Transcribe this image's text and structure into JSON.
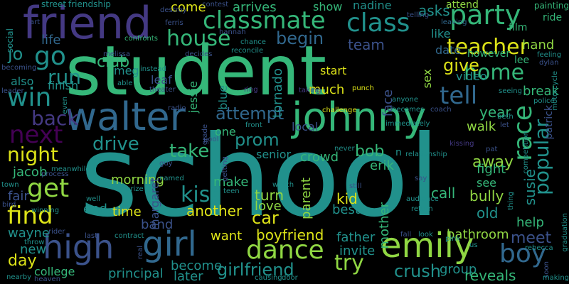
{
  "palette": {
    "teal": "#21918c",
    "green": "#35b779",
    "lime": "#90d743",
    "yellow": "#dde318",
    "blue": "#31688e",
    "indigo": "#3b528b",
    "purple": "#443983",
    "violet": "#440154"
  },
  "words": [
    {
      "id": "school",
      "text": "school",
      "color": "teal"
    },
    {
      "id": "student",
      "text": "student",
      "color": "green"
    },
    {
      "id": "friend",
      "text": "friend",
      "color": "purple"
    },
    {
      "id": "johnny",
      "text": "johnny",
      "color": "green"
    },
    {
      "id": "walter",
      "text": "walter",
      "color": "blue"
    },
    {
      "id": "high",
      "text": "high",
      "color": "indigo"
    },
    {
      "id": "girl",
      "text": "girl",
      "color": "blue"
    },
    {
      "id": "emily",
      "text": "emily",
      "color": "lime"
    },
    {
      "id": "classmate",
      "text": "classmate",
      "color": "green"
    },
    {
      "id": "party",
      "text": "party",
      "color": "green"
    },
    {
      "id": "class",
      "text": "class",
      "color": "teal"
    },
    {
      "id": "house",
      "text": "house",
      "color": "green"
    },
    {
      "id": "teacher",
      "text": "teacher",
      "color": "yellow"
    },
    {
      "id": "home",
      "text": "home",
      "color": "green"
    },
    {
      "id": "go",
      "text": "go",
      "color": "teal"
    },
    {
      "id": "win",
      "text": "win",
      "color": "teal"
    },
    {
      "id": "next",
      "text": "next",
      "color": "violet"
    },
    {
      "id": "night",
      "text": "night",
      "color": "yellow"
    },
    {
      "id": "get",
      "text": "get",
      "color": "lime"
    },
    {
      "id": "find",
      "text": "find",
      "color": "yellow"
    },
    {
      "id": "back",
      "text": "back",
      "color": "purple"
    },
    {
      "id": "tell",
      "text": "tell",
      "color": "blue"
    },
    {
      "id": "race",
      "text": "race",
      "color": "green"
    },
    {
      "id": "popular",
      "text": "popular",
      "color": "teal"
    },
    {
      "id": "dance",
      "text": "dance",
      "color": "lime"
    },
    {
      "id": "boy",
      "text": "boy",
      "color": "blue"
    },
    {
      "id": "girlfriend",
      "text": "girlfriend",
      "color": "teal"
    },
    {
      "id": "try",
      "text": "try",
      "color": "lime"
    },
    {
      "id": "crush",
      "text": "crush",
      "color": "teal"
    },
    {
      "id": "kiss",
      "text": "kiss",
      "color": "teal"
    },
    {
      "id": "attempt",
      "text": "attempt",
      "color": "blue"
    },
    {
      "id": "prom",
      "text": "prom",
      "color": "teal"
    },
    {
      "id": "drive",
      "text": "drive",
      "color": "teal"
    },
    {
      "id": "take",
      "text": "take",
      "color": "green"
    },
    {
      "id": "run",
      "text": "run",
      "color": "teal"
    },
    {
      "id": "give",
      "text": "give",
      "color": "yellow"
    },
    {
      "id": "begin",
      "text": "begin",
      "color": "blue"
    },
    {
      "id": "club",
      "text": "club",
      "color": "green"
    },
    {
      "id": "team",
      "text": "team",
      "color": "indigo"
    },
    {
      "id": "jo",
      "text": "jo",
      "color": "teal"
    },
    {
      "id": "meet",
      "text": "meet",
      "color": "indigo"
    },
    {
      "id": "bob",
      "text": "bob",
      "color": "green"
    },
    {
      "id": "car",
      "text": "car",
      "color": "yellow"
    },
    {
      "id": "susie",
      "text": "susie",
      "color": "teal"
    },
    {
      "id": "away",
      "text": "away",
      "color": "lime"
    },
    {
      "id": "year",
      "text": "year",
      "color": "green"
    },
    {
      "id": "asks",
      "text": "asks",
      "color": "teal"
    },
    {
      "id": "hand",
      "text": "hand",
      "color": "lime"
    },
    {
      "id": "break",
      "text": "break",
      "color": "green"
    },
    {
      "id": "come",
      "text": "come",
      "color": "yellow"
    },
    {
      "id": "arrives",
      "text": "arrives",
      "color": "green"
    },
    {
      "id": "show",
      "text": "show",
      "color": "green"
    },
    {
      "id": "nadine",
      "text": "nadine",
      "color": "teal"
    },
    {
      "id": "attend",
      "text": "attend",
      "color": "lime"
    },
    {
      "id": "like",
      "text": "like",
      "color": "teal"
    },
    {
      "id": "date",
      "text": "date",
      "color": "blue"
    },
    {
      "id": "however",
      "text": "however",
      "color": "green"
    },
    {
      "id": "video",
      "text": "video",
      "color": "teal"
    },
    {
      "id": "lee",
      "text": "lee",
      "color": "green"
    },
    {
      "id": "face",
      "text": "face",
      "color": "indigo"
    },
    {
      "id": "sex",
      "text": "sex",
      "color": "lime"
    },
    {
      "id": "much",
      "text": "much",
      "color": "yellow"
    },
    {
      "id": "start",
      "text": "start",
      "color": "yellow"
    },
    {
      "id": "make",
      "text": "make",
      "color": "green"
    },
    {
      "id": "one",
      "text": "one",
      "color": "green"
    },
    {
      "id": "blue",
      "text": "blue",
      "color": "teal"
    },
    {
      "id": "jessie",
      "text": "jessie",
      "color": "green"
    },
    {
      "id": "tornado",
      "text": "tornado",
      "color": "teal"
    },
    {
      "id": "local",
      "text": "local",
      "color": "indigo"
    },
    {
      "id": "senior",
      "text": "senior",
      "color": "teal"
    },
    {
      "id": "crowd",
      "text": "crowd",
      "color": "green"
    },
    {
      "id": "erik",
      "text": "erik",
      "color": "green"
    },
    {
      "id": "walk",
      "text": "walk",
      "color": "lime"
    },
    {
      "id": "fight",
      "text": "fight",
      "color": "green"
    },
    {
      "id": "see",
      "text": "see",
      "color": "green"
    },
    {
      "id": "call",
      "text": "call",
      "color": "green"
    },
    {
      "id": "bully",
      "text": "bully",
      "color": "lime"
    },
    {
      "id": "old",
      "text": "old",
      "color": "teal"
    },
    {
      "id": "kid",
      "text": "kid",
      "color": "yellow"
    },
    {
      "id": "best",
      "text": "best",
      "color": "teal"
    },
    {
      "id": "parent",
      "text": "parent",
      "color": "lime"
    },
    {
      "id": "mother",
      "text": "mother",
      "color": "green"
    },
    {
      "id": "turn",
      "text": "turn",
      "color": "lime"
    },
    {
      "id": "love",
      "text": "love",
      "color": "lime"
    },
    {
      "id": "another",
      "text": "another",
      "color": "yellow"
    },
    {
      "id": "want",
      "text": "want",
      "color": "yellow"
    },
    {
      "id": "boyfriend",
      "text": "boyfriend",
      "color": "yellow"
    },
    {
      "id": "father",
      "text": "father",
      "color": "teal"
    },
    {
      "id": "invite",
      "text": "invite",
      "color": "teal"
    },
    {
      "id": "group",
      "text": "group",
      "color": "teal"
    },
    {
      "id": "reveals",
      "text": "reveals",
      "color": "green"
    },
    {
      "id": "bathroom",
      "text": "bathroom",
      "color": "lime"
    },
    {
      "id": "help",
      "text": "help",
      "color": "green"
    },
    {
      "id": "time",
      "text": "time",
      "color": "yellow"
    },
    {
      "id": "end",
      "text": "end",
      "color": "teal"
    },
    {
      "id": "band",
      "text": "band",
      "color": "indigo"
    },
    {
      "id": "morning",
      "text": "morning",
      "color": "lime"
    },
    {
      "id": "margaret",
      "text": "margaret",
      "color": "indigo"
    },
    {
      "id": "jacob",
      "text": "jacob",
      "color": "green"
    },
    {
      "id": "fair",
      "text": "fair",
      "color": "indigo"
    },
    {
      "id": "wayne",
      "text": "wayne",
      "color": "teal"
    },
    {
      "id": "day",
      "text": "day",
      "color": "yellow"
    },
    {
      "id": "new",
      "text": "new",
      "color": "teal"
    },
    {
      "id": "college",
      "text": "college",
      "color": "green"
    },
    {
      "id": "principal",
      "text": "principal",
      "color": "teal"
    },
    {
      "id": "become",
      "text": "become",
      "color": "teal"
    },
    {
      "id": "later",
      "text": "later",
      "color": "teal"
    },
    {
      "id": "life",
      "text": "life",
      "color": "blue"
    },
    {
      "id": "also",
      "text": "also",
      "color": "teal"
    },
    {
      "id": "finish",
      "text": "finish",
      "color": "teal"
    },
    {
      "id": "meg",
      "text": "meg",
      "color": "teal"
    },
    {
      "id": "leaf",
      "text": "leaf",
      "color": "indigo"
    },
    {
      "id": "social",
      "text": "social",
      "color": "teal"
    },
    {
      "id": "street",
      "text": "street",
      "color": "teal"
    },
    {
      "id": "friendship",
      "text": "friendship",
      "color": "teal"
    },
    {
      "id": "art",
      "text": "art",
      "color": "indigo"
    },
    {
      "id": "destroy",
      "text": "destroy",
      "color": "indigo"
    },
    {
      "id": "ferris",
      "text": "ferris",
      "color": "indigo"
    },
    {
      "id": "contest",
      "text": "contest",
      "color": "indigo"
    },
    {
      "id": "hannah",
      "text": "hannah",
      "color": "indigo"
    },
    {
      "id": "confronts",
      "text": "confronts",
      "color": "green"
    },
    {
      "id": "melissa",
      "text": "melissa",
      "color": "indigo"
    },
    {
      "id": "decides",
      "text": "decides",
      "color": "indigo"
    },
    {
      "id": "chance",
      "text": "chance",
      "color": "teal"
    },
    {
      "id": "reconcile",
      "text": "reconcile",
      "color": "teal"
    },
    {
      "id": "leaving",
      "text": "leaving",
      "color": "blue"
    },
    {
      "id": "telling",
      "text": "telling",
      "color": "indigo"
    },
    {
      "id": "painting",
      "text": "painting",
      "color": "green"
    },
    {
      "id": "ride",
      "text": "ride",
      "color": "green"
    },
    {
      "id": "film",
      "text": "film",
      "color": "green"
    },
    {
      "id": "feeling",
      "text": "feeling",
      "color": "teal"
    },
    {
      "id": "dylan",
      "text": "dylan",
      "color": "indigo"
    },
    {
      "id": "motorcycle",
      "text": "motorcycle",
      "color": "teal"
    },
    {
      "id": "becoming",
      "text": "becoming",
      "color": "indigo"
    },
    {
      "id": "instead",
      "text": "instead",
      "color": "teal"
    },
    {
      "id": "able",
      "text": "able",
      "color": "teal"
    },
    {
      "id": "theater",
      "text": "theater",
      "color": "indigo"
    },
    {
      "id": "leader",
      "text": "leader",
      "color": "indigo"
    },
    {
      "id": "radio",
      "text": "radio",
      "color": "indigo"
    },
    {
      "id": "ring",
      "text": "ring",
      "color": "purple"
    },
    {
      "id": "taking",
      "text": "taking",
      "color": "purple"
    },
    {
      "id": "punch",
      "text": "punch",
      "color": "yellow"
    },
    {
      "id": "anyone",
      "text": "anyone",
      "color": "teal"
    },
    {
      "id": "challenge",
      "text": "challenge",
      "color": "yellow"
    },
    {
      "id": "becomes",
      "text": "becomes",
      "color": "teal"
    },
    {
      "id": "coach",
      "text": "coach",
      "color": "indigo"
    },
    {
      "id": "seeing",
      "text": "seeing",
      "color": "teal"
    },
    {
      "id": "police",
      "text": "police",
      "color": "teal"
    },
    {
      "id": "beth",
      "text": "beth",
      "color": "teal"
    },
    {
      "id": "let",
      "text": "let",
      "color": "indigo"
    },
    {
      "id": "competition",
      "text": "competition",
      "color": "teal"
    },
    {
      "id": "patrick",
      "text": "patrick",
      "color": "indigo"
    },
    {
      "id": "even",
      "text": "even",
      "color": "teal"
    },
    {
      "id": "grade",
      "text": "grade",
      "color": "indigo"
    },
    {
      "id": "front",
      "text": "front",
      "color": "teal"
    },
    {
      "id": "immediately",
      "text": "immediately",
      "color": "teal"
    },
    {
      "id": "kissing",
      "text": "kissing",
      "color": "purple"
    },
    {
      "id": "pat",
      "text": "pat",
      "color": "indigo"
    },
    {
      "id": "relationship",
      "text": "relationship",
      "color": "teal"
    },
    {
      "id": "never",
      "text": "never",
      "color": "teal"
    },
    {
      "id": "guy",
      "text": "guy",
      "color": "indigo"
    },
    {
      "id": "named",
      "text": "named",
      "color": "teal"
    },
    {
      "id": "pool",
      "text": "pool",
      "color": "indigo"
    },
    {
      "id": "getting",
      "text": "getting",
      "color": "indigo"
    },
    {
      "id": "meanwhile",
      "text": "meanwhile",
      "color": "teal"
    },
    {
      "id": "process",
      "text": "process",
      "color": "indigo"
    },
    {
      "id": "town",
      "text": "town",
      "color": "teal"
    },
    {
      "id": "prize",
      "text": "prize",
      "color": "teal"
    },
    {
      "id": "teen",
      "text": "teen",
      "color": "teal"
    },
    {
      "id": "watch",
      "text": "watch",
      "color": "teal"
    },
    {
      "id": "still",
      "text": "still",
      "color": "indigo"
    },
    {
      "id": "say",
      "text": "say",
      "color": "indigo"
    },
    {
      "id": "audience",
      "text": "audience",
      "color": "teal"
    },
    {
      "id": "return",
      "text": "return",
      "color": "teal"
    },
    {
      "id": "thing",
      "text": "thing",
      "color": "teal"
    },
    {
      "id": "graduation",
      "text": "graduation",
      "color": "teal"
    },
    {
      "id": "well",
      "text": "well",
      "color": "teal"
    },
    {
      "id": "winning",
      "text": "winning",
      "color": "teal"
    },
    {
      "id": "bird",
      "text": "bird",
      "color": "indigo"
    },
    {
      "id": "rider",
      "text": "rider",
      "color": "indigo"
    },
    {
      "id": "throw",
      "text": "throw",
      "color": "teal"
    },
    {
      "id": "contract",
      "text": "contract",
      "color": "teal"
    },
    {
      "id": "last",
      "text": "last",
      "color": "indigo"
    },
    {
      "id": "real",
      "text": "real",
      "color": "indigo"
    },
    {
      "id": "fall",
      "text": "fall",
      "color": "indigo"
    },
    {
      "id": "look",
      "text": "look",
      "color": "teal"
    },
    {
      "id": "pink",
      "text": "pink",
      "color": "teal"
    },
    {
      "id": "us",
      "text": "us",
      "color": "teal"
    },
    {
      "id": "rebecca",
      "text": "rebecca",
      "color": "teal"
    },
    {
      "id": "soon",
      "text": "soon",
      "color": "indigo"
    },
    {
      "id": "making",
      "text": "making",
      "color": "teal"
    },
    {
      "id": "nearby",
      "text": "nearby",
      "color": "teal"
    },
    {
      "id": "heaven",
      "text": "heaven",
      "color": "indigo"
    },
    {
      "id": "causing",
      "text": "causing",
      "color": "teal"
    },
    {
      "id": "door",
      "text": "door",
      "color": "teal"
    },
    {
      "id": "n",
      "text": "n",
      "color": "teal"
    }
  ]
}
